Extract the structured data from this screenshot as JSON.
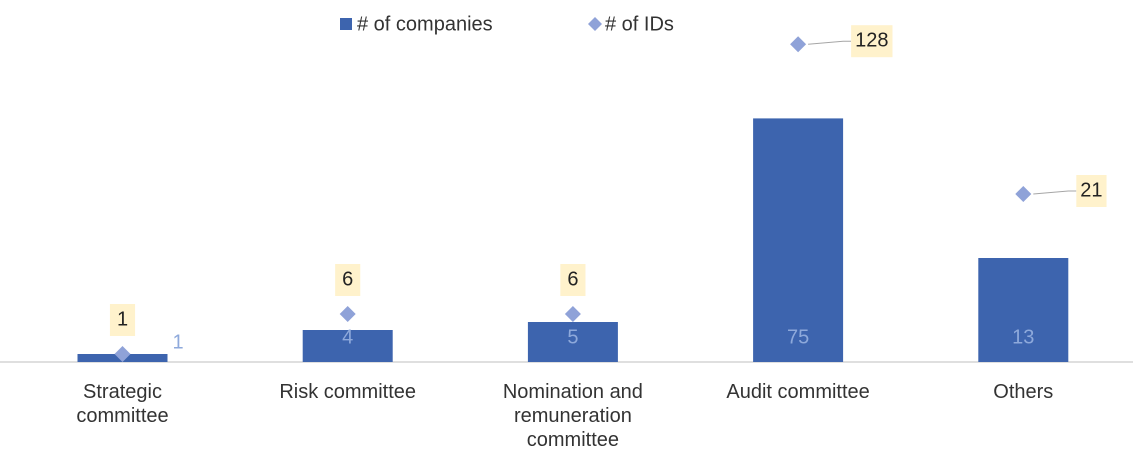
{
  "chart_data": {
    "type": "bar",
    "categories": [
      "Strategic committee",
      "Risk committee",
      "Nomination and remuneration committee",
      "Audit committee",
      "Others"
    ],
    "series": [
      {
        "name": "# of companies",
        "color": "#3d64ae",
        "values": [
          1,
          4,
          5,
          75,
          13
        ]
      },
      {
        "name": "# of IDs",
        "color": "#8fa2d8",
        "values": [
          1,
          6,
          6,
          128,
          21
        ]
      }
    ],
    "legend": "top"
  }
}
